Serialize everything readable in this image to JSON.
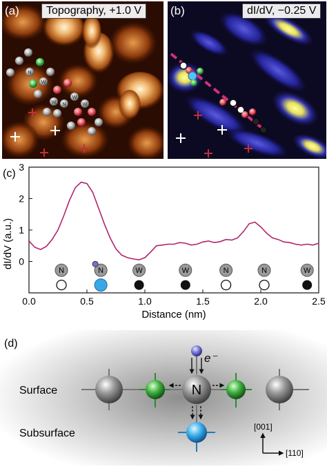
{
  "panel_a": {
    "letter": "(a)",
    "label": "Topography, +1.0 V"
  },
  "panel_b": {
    "letter": "(b)",
    "label": "dI/dV, −0.25 V"
  },
  "panel_c": {
    "letter": "(c)"
  },
  "panel_d": {
    "letter": "(d)"
  },
  "chart_data": {
    "type": "line",
    "xlabel": "Distance (nm)",
    "ylabel": "dI/dV (a.u.)",
    "xlim": [
      0.0,
      2.5
    ],
    "ylim": [
      -1.0,
      3.0
    ],
    "xticks": [
      "0.0",
      "0.5",
      "1.0",
      "1.5",
      "2.0",
      "2.5"
    ],
    "yticks": [
      "0",
      "1",
      "2",
      "3"
    ],
    "color": "#b0236e",
    "x": [
      0.0,
      0.05,
      0.1,
      0.15,
      0.2,
      0.25,
      0.3,
      0.35,
      0.4,
      0.45,
      0.5,
      0.55,
      0.6,
      0.65,
      0.7,
      0.75,
      0.8,
      0.85,
      0.9,
      0.95,
      1.0,
      1.05,
      1.1,
      1.15,
      1.2,
      1.25,
      1.3,
      1.35,
      1.4,
      1.45,
      1.5,
      1.55,
      1.6,
      1.65,
      1.7,
      1.75,
      1.8,
      1.85,
      1.9,
      1.95,
      2.0,
      2.05,
      2.1,
      2.15,
      2.2,
      2.25,
      2.3,
      2.35,
      2.4,
      2.45,
      2.5
    ],
    "y": [
      0.65,
      0.45,
      0.38,
      0.48,
      0.7,
      1.0,
      1.45,
      1.95,
      2.35,
      2.52,
      2.48,
      2.2,
      1.7,
      1.2,
      0.75,
      0.4,
      0.2,
      0.12,
      0.08,
      0.05,
      0.12,
      0.3,
      0.5,
      0.52,
      0.55,
      0.55,
      0.6,
      0.58,
      0.52,
      0.55,
      0.62,
      0.65,
      0.6,
      0.63,
      0.7,
      0.68,
      0.75,
      0.95,
      1.2,
      1.25,
      1.1,
      0.9,
      0.75,
      0.7,
      0.62,
      0.6,
      0.55,
      0.52,
      0.55,
      0.52,
      0.58
    ],
    "atom_row": [
      {
        "label": "N",
        "x": 0.28,
        "marker": "open"
      },
      {
        "label": "N",
        "x": 0.62,
        "marker": "blue",
        "adatom": true
      },
      {
        "label": "W",
        "x": 0.95,
        "marker": "filled"
      },
      {
        "label": "W",
        "x": 1.35,
        "marker": "filled"
      },
      {
        "label": "N",
        "x": 1.7,
        "marker": "open"
      },
      {
        "label": "N",
        "x": 2.03,
        "marker": "open"
      },
      {
        "label": "W",
        "x": 2.4,
        "marker": "filled"
      }
    ]
  },
  "diagram": {
    "surface_label": "Surface",
    "subsurface_label": "Subsurface",
    "center_atom": "N",
    "electron_label": "e⁻",
    "axis_vertical": "[001]",
    "axis_horizontal": "[110]"
  },
  "stm_atoms": {
    "N": "N",
    "W": "W"
  }
}
